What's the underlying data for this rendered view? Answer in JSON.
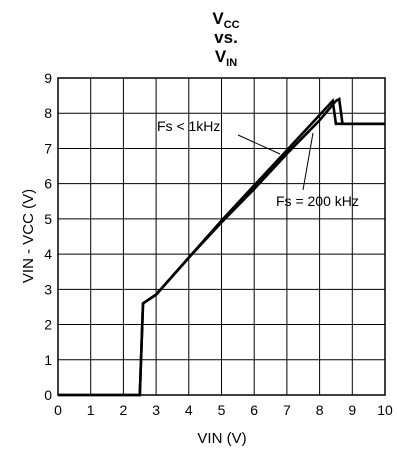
{
  "chart_data": {
    "type": "line",
    "title": {
      "line1_main": "V",
      "line1_sub": "CC",
      "line2": "vs.",
      "line3_main": "V",
      "line3_sub": "IN"
    },
    "xlabel": "VIN (V)",
    "ylabel": "VIN - VCC (V)",
    "xlim": [
      0,
      10
    ],
    "ylim": [
      0,
      9
    ],
    "xticks": [
      "0",
      "1",
      "2",
      "3",
      "4",
      "5",
      "6",
      "7",
      "8",
      "9",
      "10"
    ],
    "yticks": [
      "0",
      "1",
      "2",
      "3",
      "4",
      "5",
      "6",
      "7",
      "8",
      "9"
    ],
    "grid": true,
    "series": [
      {
        "name": "Fs < 1kHz",
        "x": [
          0,
          2.5,
          2.6,
          3.0,
          4.0,
          5.0,
          6.0,
          7.0,
          8.0,
          8.4,
          8.5,
          8.6,
          10
        ],
        "y": [
          0,
          0,
          2.6,
          2.85,
          3.9,
          4.95,
          5.95,
          6.95,
          7.95,
          8.35,
          7.7,
          7.7,
          7.7
        ]
      },
      {
        "name": "Fs = 200 kHz",
        "x": [
          0,
          2.5,
          2.6,
          3.0,
          4.0,
          5.0,
          6.0,
          7.0,
          8.0,
          8.5,
          8.6,
          8.7,
          10
        ],
        "y": [
          0,
          0,
          2.6,
          2.85,
          3.9,
          4.9,
          5.85,
          6.85,
          7.8,
          8.35,
          8.4,
          7.7,
          7.7
        ]
      }
    ],
    "annotations": [
      {
        "text": "Fs < 1kHz",
        "x": 6.7,
        "y": 6.9
      },
      {
        "text": "Fs = 200 kHz",
        "x": 7.6,
        "y": 7.1
      }
    ]
  }
}
